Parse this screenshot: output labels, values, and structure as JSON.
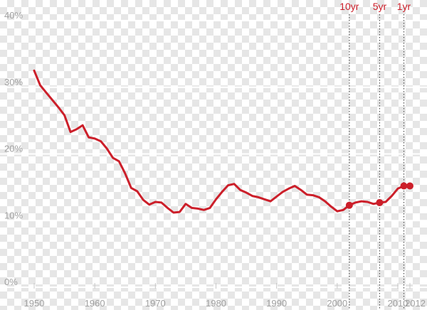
{
  "chart_data": {
    "type": "line",
    "title": "",
    "xlabel": "",
    "ylabel": "",
    "xlim": [
      1950,
      2012
    ],
    "ylim": [
      0,
      40
    ],
    "grid": true,
    "x_ticks": [
      1950,
      1960,
      1970,
      1980,
      1990,
      2000,
      2010,
      2012
    ],
    "x_tick_labels": [
      "1950",
      "1960",
      "1970",
      "1980",
      "1990",
      "2000",
      "2010",
      "2012"
    ],
    "y_ticks": [
      0,
      10,
      20,
      30,
      40
    ],
    "y_tick_labels": [
      "0%",
      "10%",
      "20%",
      "30%",
      "40%"
    ],
    "colors": {
      "line": "#cc1f2a",
      "grid": "#ffffff",
      "ticks": "#a0a0a0",
      "marker_line": "#555555"
    },
    "series": [
      {
        "x": [
          1950,
          1951,
          1952,
          1953,
          1954,
          1955,
          1956,
          1957,
          1958,
          1959,
          1960,
          1961,
          1962,
          1963,
          1964,
          1965,
          1966,
          1967,
          1968,
          1969,
          1970,
          1971,
          1972,
          1973,
          1974,
          1975,
          1976,
          1977,
          1978,
          1979,
          1980,
          1981,
          1982,
          1983,
          1984,
          1985,
          1986,
          1987,
          1988,
          1989,
          1990,
          1991,
          1992,
          1993,
          1994,
          1995,
          1996,
          1997,
          1998,
          1999,
          2000,
          2001,
          2002,
          2003,
          2004,
          2005,
          2006,
          2007,
          2008,
          2009,
          2010,
          2011,
          2012
        ],
        "y": [
          32.5,
          30.3,
          29.2,
          28.1,
          27.0,
          25.8,
          23.3,
          23.7,
          24.3,
          22.5,
          22.3,
          21.9,
          20.8,
          19.4,
          18.9,
          17.1,
          14.9,
          14.4,
          13.1,
          12.4,
          12.8,
          12.7,
          11.9,
          11.2,
          11.3,
          12.5,
          11.9,
          11.8,
          11.6,
          11.9,
          13.2,
          14.3,
          15.3,
          15.5,
          14.6,
          14.2,
          13.7,
          13.5,
          13.2,
          12.9,
          13.6,
          14.3,
          14.8,
          15.2,
          14.6,
          13.9,
          13.8,
          13.5,
          12.9,
          12.1,
          11.4,
          11.6,
          12.3,
          12.7,
          12.9,
          12.8,
          12.5,
          12.7,
          12.8,
          13.7,
          14.8,
          15.2,
          15.2
        ]
      }
    ],
    "markers": [
      {
        "label": "10yr",
        "x": 2002,
        "y": 12.3
      },
      {
        "label": "5yr",
        "x": 2007,
        "y": 12.7
      },
      {
        "label": "1yr",
        "x": 2011,
        "y": 15.2
      }
    ],
    "endpoint": {
      "x": 2012,
      "y": 15.2
    }
  }
}
